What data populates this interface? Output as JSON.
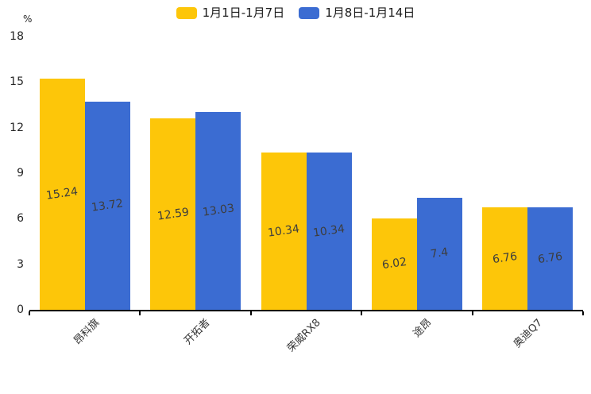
{
  "legend": {
    "items": [
      {
        "label": "1月1日-1月7日",
        "color": "#FDC609"
      },
      {
        "label": "1月8日-1月14日",
        "color": "#3B6CD2"
      }
    ]
  },
  "chart_data": {
    "type": "bar",
    "title": "",
    "xlabel": "",
    "ylabel": "%",
    "categories": [
      "昂科旗",
      "开拓者",
      "荣威RX8",
      "途昂",
      "奥迪Q7"
    ],
    "series": [
      {
        "name": "1月1日-1月7日",
        "color": "#FDC609",
        "values": [
          15.24,
          12.59,
          10.34,
          6.02,
          6.76
        ]
      },
      {
        "name": "1月8日-1月14日",
        "color": "#3B6CD2",
        "values": [
          13.72,
          13.03,
          10.34,
          7.4,
          6.76
        ]
      }
    ],
    "ylim": [
      0,
      18
    ],
    "yticks": [
      0,
      3,
      6,
      9,
      12,
      15,
      18
    ],
    "grid": false,
    "legend_position": "top",
    "value_labels": "inside-center",
    "value_label_color": "#3d3d3d",
    "axis_color": "#000000",
    "tick_label_color": "#262626"
  }
}
